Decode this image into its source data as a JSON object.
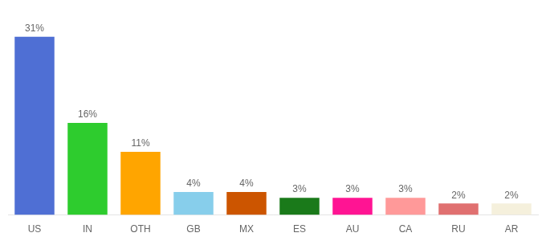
{
  "chart_data": {
    "type": "bar",
    "categories": [
      "US",
      "IN",
      "OTH",
      "GB",
      "MX",
      "ES",
      "AU",
      "CA",
      "RU",
      "AR"
    ],
    "values": [
      31,
      16,
      11,
      4,
      4,
      3,
      3,
      3,
      2,
      2
    ],
    "value_labels": [
      "31%",
      "16%",
      "11%",
      "4%",
      "4%",
      "3%",
      "3%",
      "3%",
      "2%",
      "2%"
    ],
    "colors": [
      "#4F6FD4",
      "#2ECC2E",
      "#FFA500",
      "#87CEEB",
      "#CC5500",
      "#1A7A1A",
      "#FF1493",
      "#FF9999",
      "#E07070",
      "#F5F0DC"
    ],
    "ylim": [
      0,
      36
    ],
    "grid": false,
    "tick_labels": "x",
    "data_labels": true
  }
}
